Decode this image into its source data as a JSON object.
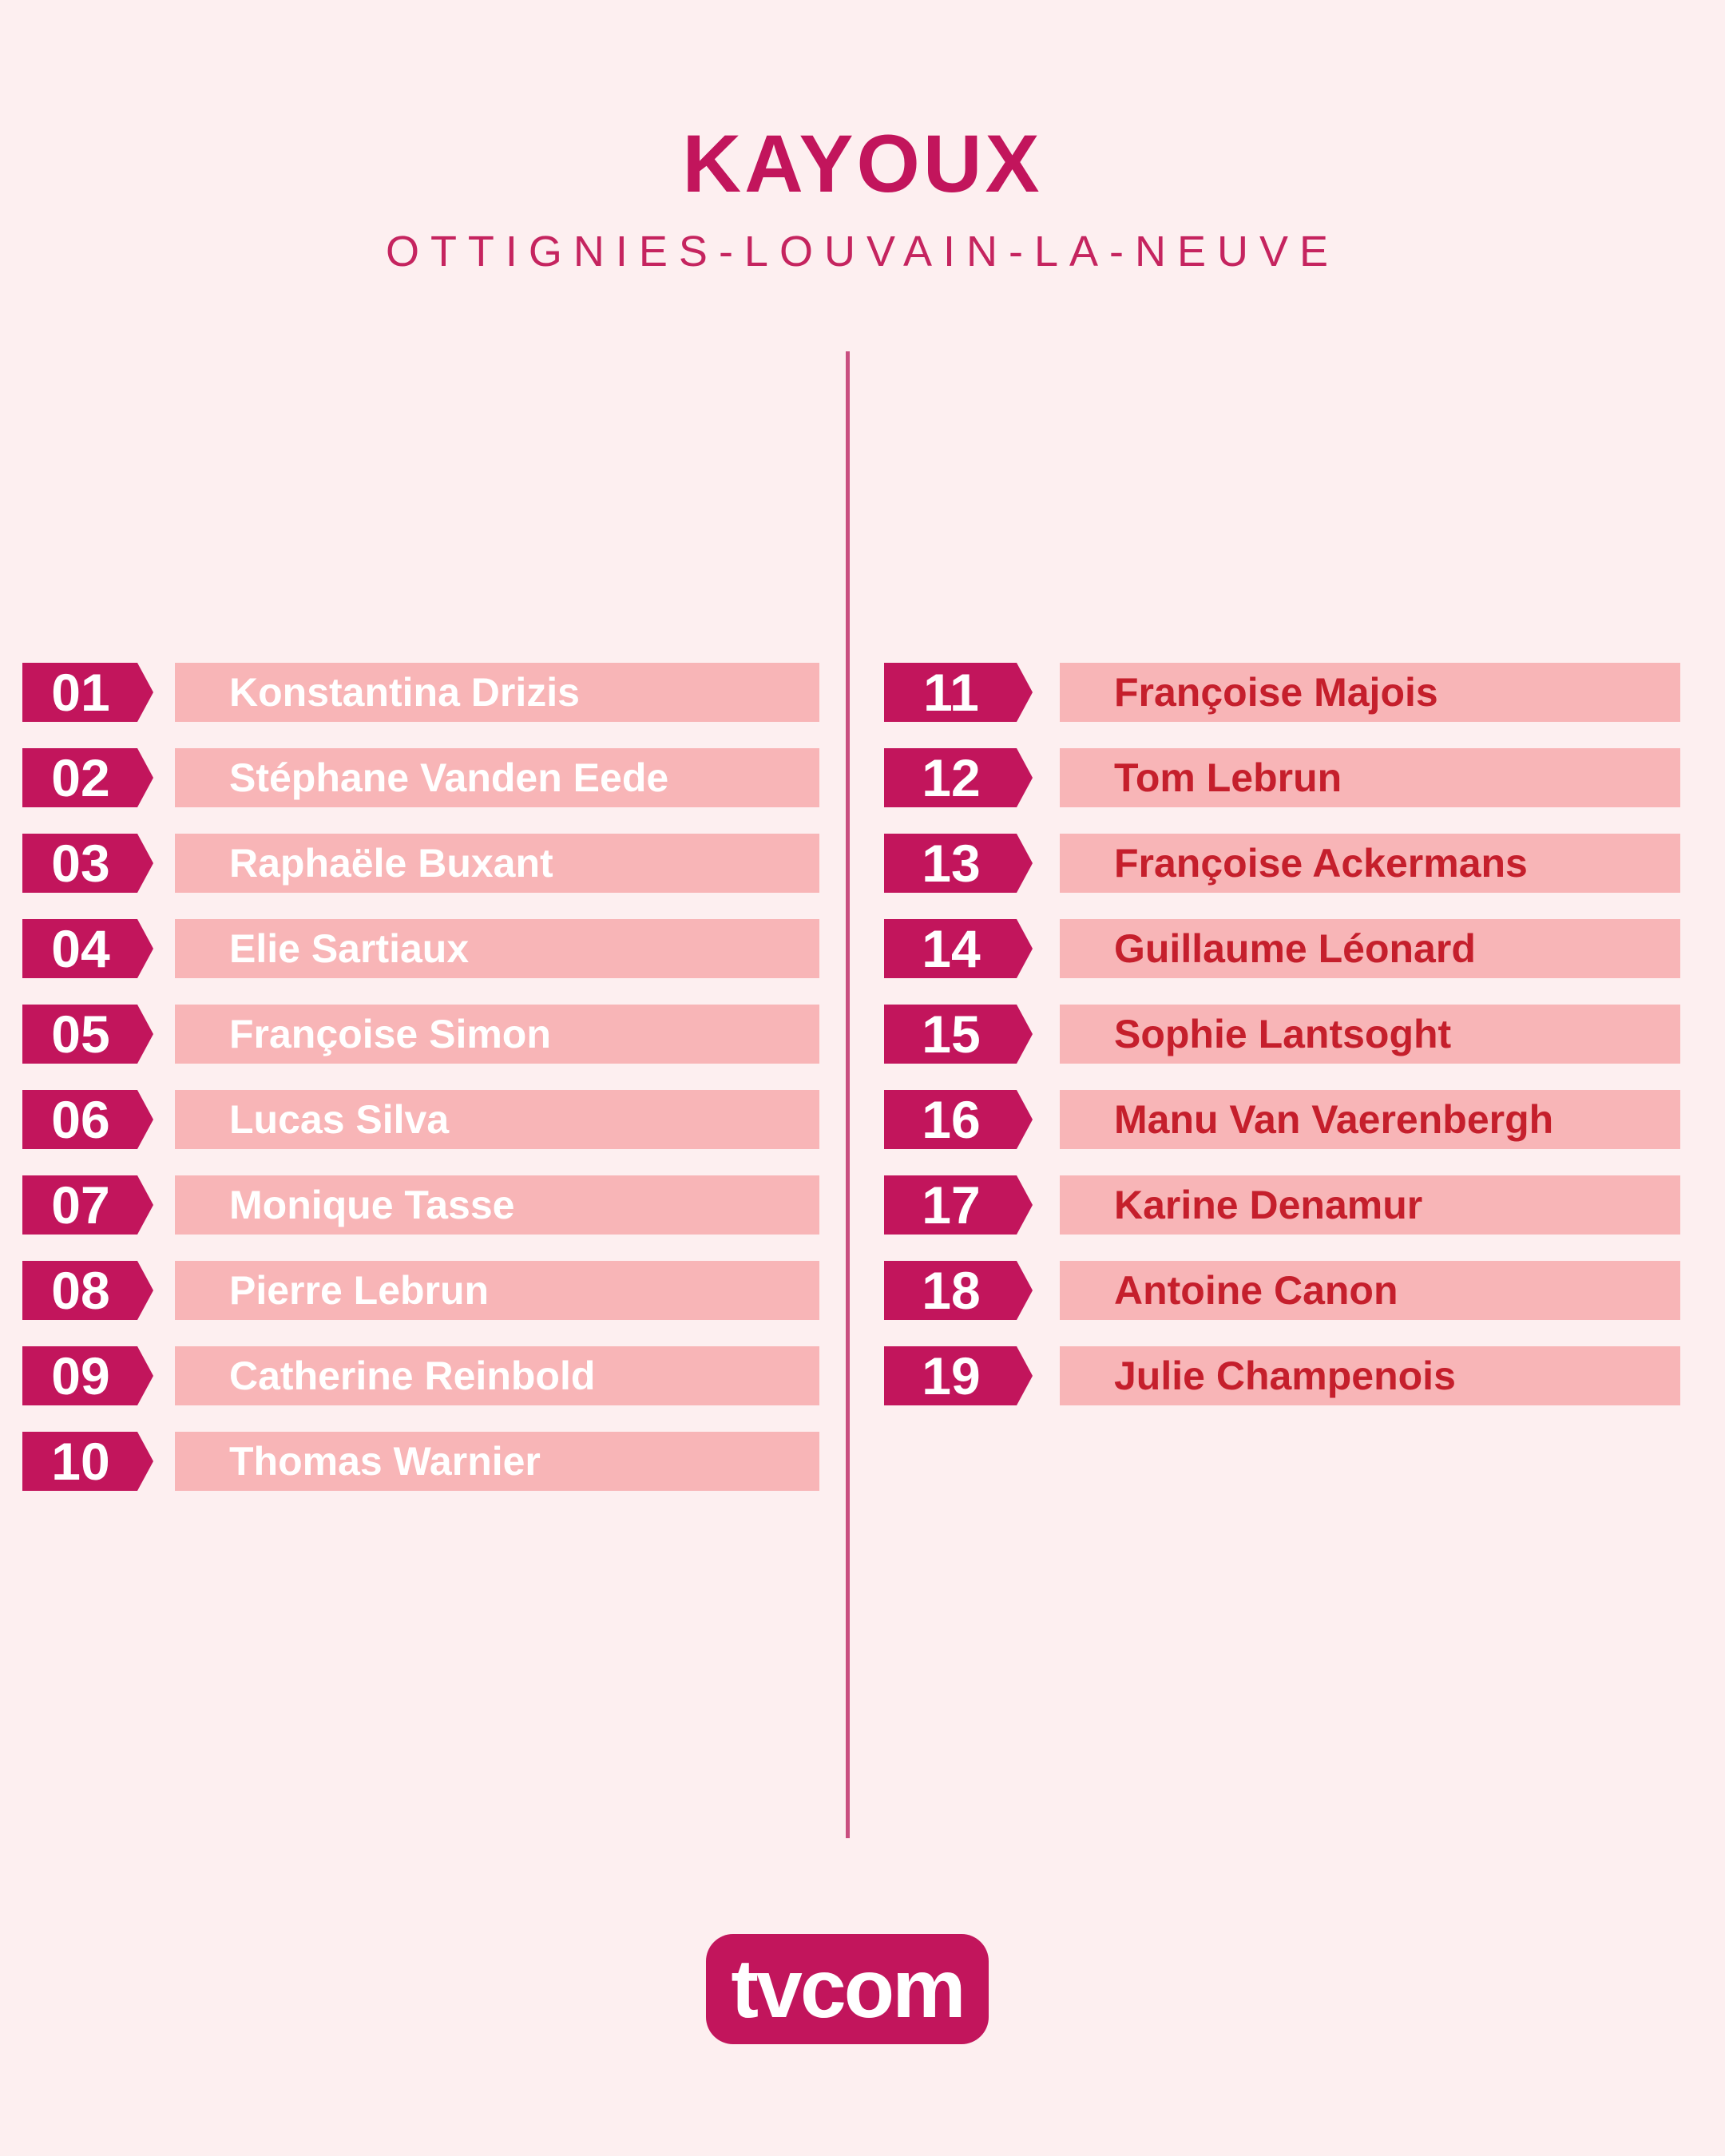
{
  "header": {
    "title": "KAYOUX",
    "subtitle": "OTTIGNIES-LOUVAIN-LA-NEUVE"
  },
  "colors": {
    "accent_crimson": "#c2155c",
    "bar_pink": "#f8b5b7",
    "background_pink": "#fdeff0",
    "left_name_color": "#ffffff",
    "right_name_color": "#c51f2c",
    "divider_pink": "#c94f80"
  },
  "list": {
    "left": [
      {
        "num": "01",
        "name": "Konstantina Drizis"
      },
      {
        "num": "02",
        "name": "Stéphane Vanden Eede"
      },
      {
        "num": "03",
        "name": "Raphaële Buxant"
      },
      {
        "num": "04",
        "name": "Elie Sartiaux"
      },
      {
        "num": "05",
        "name": "Françoise Simon"
      },
      {
        "num": "06",
        "name": "Lucas Silva"
      },
      {
        "num": "07",
        "name": "Monique Tasse"
      },
      {
        "num": "08",
        "name": "Pierre Lebrun"
      },
      {
        "num": "09",
        "name": "Catherine Reinbold"
      },
      {
        "num": "10",
        "name": "Thomas Warnier"
      }
    ],
    "right": [
      {
        "num": "11",
        "name": "Françoise Majois"
      },
      {
        "num": "12",
        "name": "Tom Lebrun"
      },
      {
        "num": "13",
        "name": "Françoise Ackermans"
      },
      {
        "num": "14",
        "name": "Guillaume Léonard"
      },
      {
        "num": "15",
        "name": "Sophie Lantsoght"
      },
      {
        "num": "16",
        "name": "Manu Van Vaerenbergh"
      },
      {
        "num": "17",
        "name": "Karine Denamur"
      },
      {
        "num": "18",
        "name": "Antoine Canon"
      },
      {
        "num": "19",
        "name": "Julie Champenois"
      }
    ]
  },
  "footer": {
    "logo_text": "tvcom"
  }
}
